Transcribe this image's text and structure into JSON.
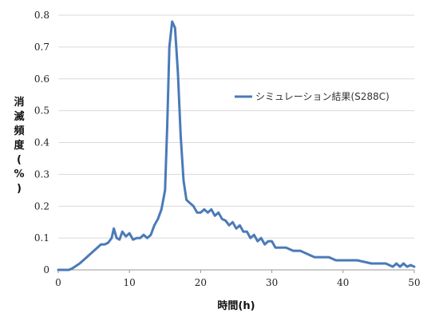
{
  "chart_data": {
    "type": "line",
    "xlabel": "時間(h)",
    "ylabel": "消滅頻度(%)",
    "xlim": [
      0,
      50
    ],
    "ylim": [
      0,
      0.8
    ],
    "xticks": [
      "0",
      "10",
      "20",
      "30",
      "40",
      "50"
    ],
    "yticks": [
      "0",
      "0.1",
      "0.2",
      "0.3",
      "0.4",
      "0.5",
      "0.6",
      "0.7",
      "0.8"
    ],
    "grid": "horizontal",
    "legend_position": "right",
    "series": [
      {
        "name": "シミュレーション結果(S288C)",
        "color": "#4a7ab8",
        "points": [
          [
            0,
            0
          ],
          [
            1,
            0
          ],
          [
            1.5,
            0
          ],
          [
            2,
            0.005
          ],
          [
            3,
            0.02
          ],
          [
            4,
            0.04
          ],
          [
            5,
            0.06
          ],
          [
            6,
            0.08
          ],
          [
            6.5,
            0.08
          ],
          [
            7,
            0.085
          ],
          [
            7.5,
            0.1
          ],
          [
            7.8,
            0.13
          ],
          [
            8.2,
            0.1
          ],
          [
            8.6,
            0.095
          ],
          [
            9,
            0.12
          ],
          [
            9.5,
            0.105
          ],
          [
            10,
            0.115
          ],
          [
            10.5,
            0.095
          ],
          [
            11,
            0.1
          ],
          [
            11.5,
            0.1
          ],
          [
            12,
            0.11
          ],
          [
            12.5,
            0.1
          ],
          [
            13,
            0.11
          ],
          [
            13.5,
            0.14
          ],
          [
            14,
            0.16
          ],
          [
            14.5,
            0.19
          ],
          [
            15,
            0.25
          ],
          [
            15.3,
            0.45
          ],
          [
            15.6,
            0.7
          ],
          [
            16,
            0.78
          ],
          [
            16.4,
            0.76
          ],
          [
            16.8,
            0.62
          ],
          [
            17.2,
            0.42
          ],
          [
            17.6,
            0.28
          ],
          [
            18,
            0.22
          ],
          [
            18.5,
            0.21
          ],
          [
            19,
            0.2
          ],
          [
            19.5,
            0.18
          ],
          [
            20,
            0.18
          ],
          [
            20.5,
            0.19
          ],
          [
            21,
            0.18
          ],
          [
            21.5,
            0.19
          ],
          [
            22,
            0.17
          ],
          [
            22.5,
            0.18
          ],
          [
            23,
            0.16
          ],
          [
            23.5,
            0.155
          ],
          [
            24,
            0.14
          ],
          [
            24.5,
            0.15
          ],
          [
            25,
            0.13
          ],
          [
            25.5,
            0.14
          ],
          [
            26,
            0.12
          ],
          [
            26.5,
            0.12
          ],
          [
            27,
            0.1
          ],
          [
            27.5,
            0.11
          ],
          [
            28,
            0.09
          ],
          [
            28.5,
            0.1
          ],
          [
            29,
            0.08
          ],
          [
            29.5,
            0.09
          ],
          [
            30,
            0.09
          ],
          [
            30.5,
            0.07
          ],
          [
            31,
            0.07
          ],
          [
            32,
            0.07
          ],
          [
            33,
            0.06
          ],
          [
            34,
            0.06
          ],
          [
            35,
            0.05
          ],
          [
            36,
            0.04
          ],
          [
            37,
            0.04
          ],
          [
            38,
            0.04
          ],
          [
            39,
            0.03
          ],
          [
            40,
            0.03
          ],
          [
            42,
            0.03
          ],
          [
            44,
            0.02
          ],
          [
            45,
            0.02
          ],
          [
            46,
            0.02
          ],
          [
            47,
            0.01
          ],
          [
            47.5,
            0.02
          ],
          [
            48,
            0.01
          ],
          [
            48.5,
            0.02
          ],
          [
            49,
            0.01
          ],
          [
            49.5,
            0.015
          ],
          [
            50,
            0.01
          ]
        ]
      }
    ]
  }
}
